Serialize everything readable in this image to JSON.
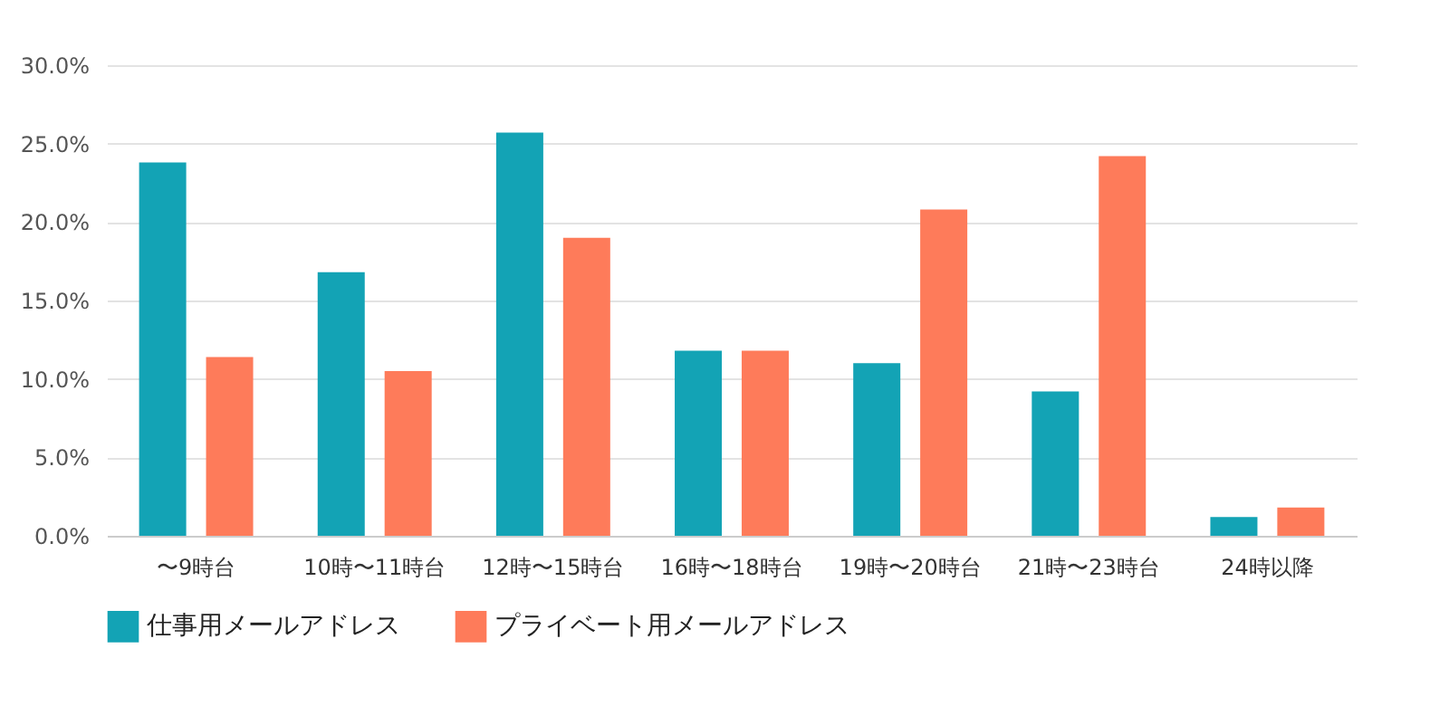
{
  "chart_data": {
    "type": "bar",
    "categories": [
      "〜9時台",
      "10時〜11時台",
      "12時〜15時台",
      "16時〜18時台",
      "19時〜20時台",
      "21時〜23時台",
      "24時以降"
    ],
    "series": [
      {
        "name": "仕事用メールアドレス",
        "color": "#13a3b5",
        "values": [
          23.8,
          16.8,
          25.7,
          11.8,
          11.0,
          9.2,
          1.2
        ]
      },
      {
        "name": "プライベート用メールアドレス",
        "color": "#fe7b5a",
        "values": [
          11.4,
          10.5,
          19.0,
          11.8,
          20.8,
          24.2,
          1.8
        ]
      }
    ],
    "ylim": [
      0,
      30
    ],
    "yticks": [
      {
        "value": 0,
        "label": "0.0%"
      },
      {
        "value": 5,
        "label": "5.0%"
      },
      {
        "value": 10,
        "label": "10.0%"
      },
      {
        "value": 15,
        "label": "15.0%"
      },
      {
        "value": 20,
        "label": "20.0%"
      },
      {
        "value": 25,
        "label": "25.0%"
      },
      {
        "value": 30,
        "label": "30.0%"
      }
    ],
    "grid": "y",
    "legend": "bottom"
  }
}
